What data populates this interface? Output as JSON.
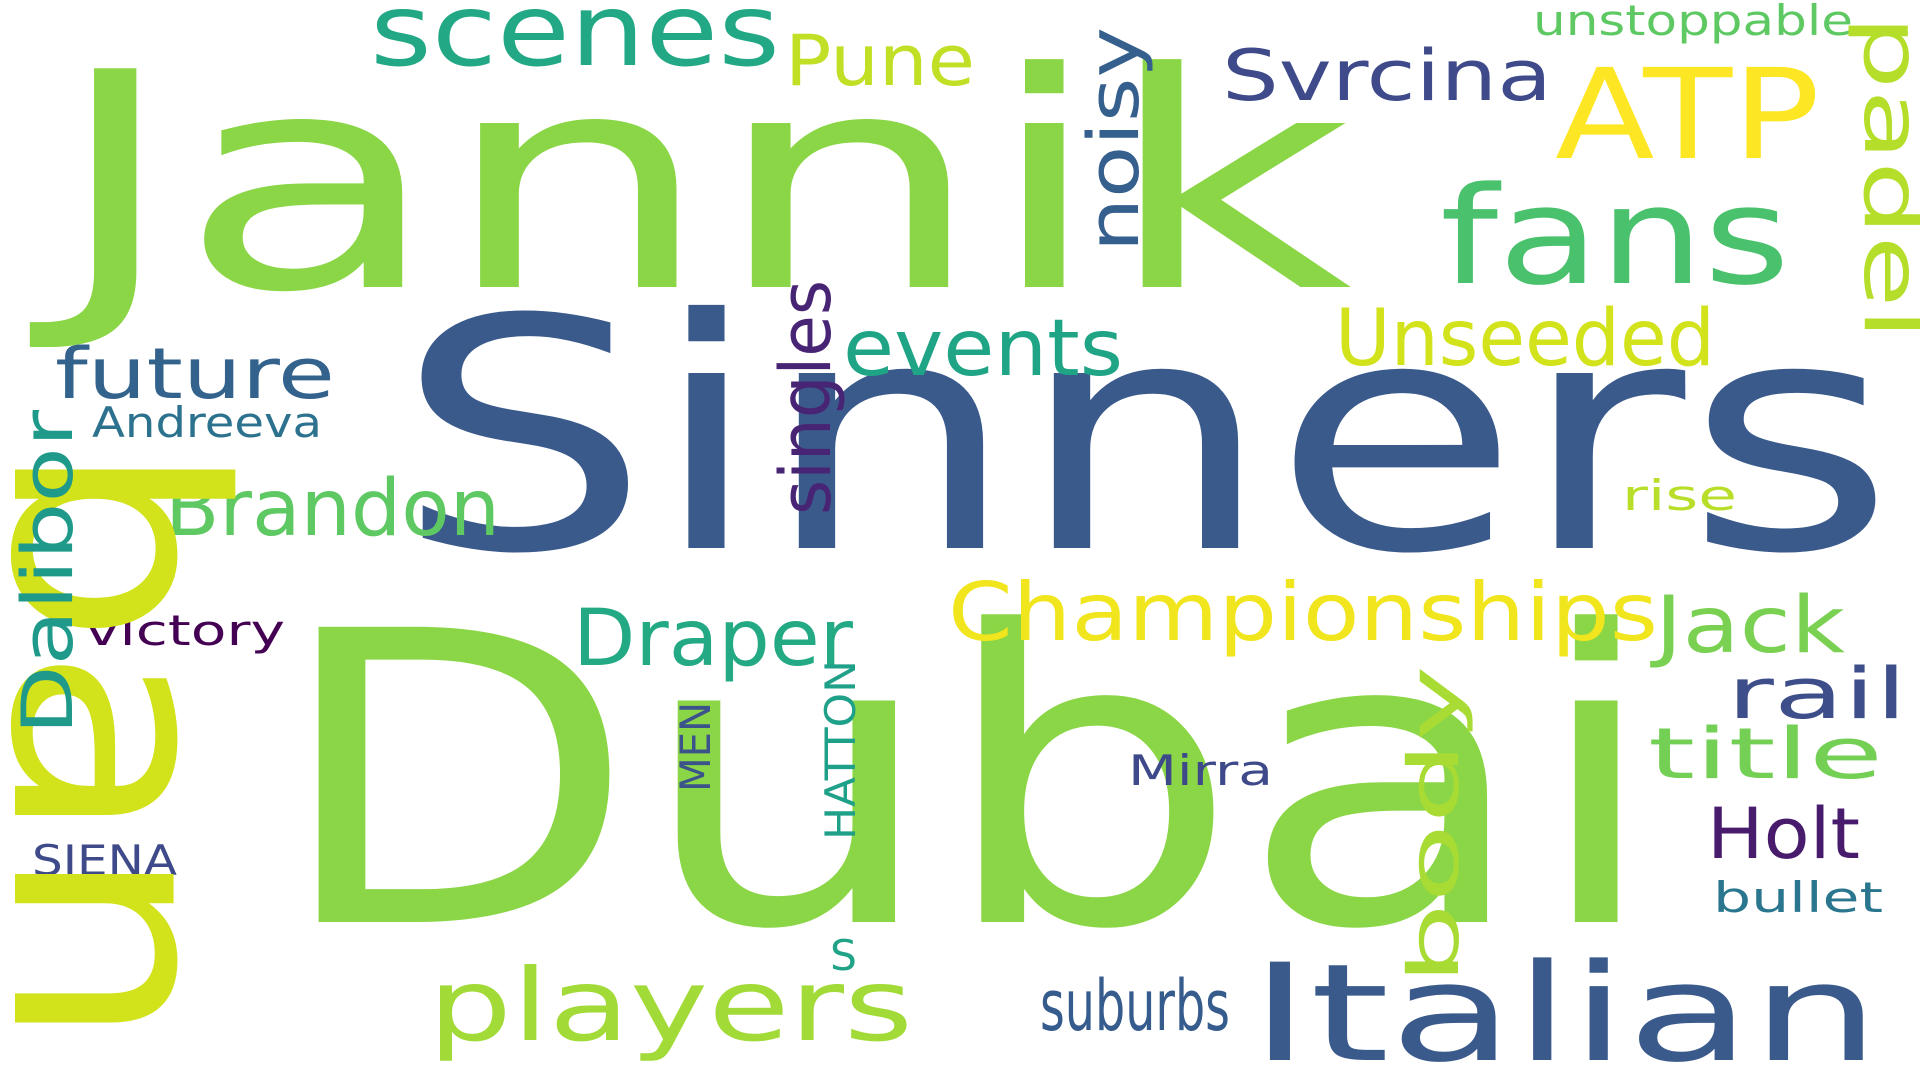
{
  "words": [
    {
      "text": "Dubai",
      "color": "#8bd646"
    },
    {
      "text": "Sinners",
      "color": "#3b5a8c"
    },
    {
      "text": "Jannik",
      "color": "#8bd646"
    },
    {
      "text": "ban",
      "color": "#d2e21b"
    },
    {
      "text": "Italian",
      "color": "#3b5a8c"
    },
    {
      "text": "fans",
      "color": "#4ac16d"
    },
    {
      "text": "players",
      "color": "#a2da37"
    },
    {
      "text": "scenes",
      "color": "#22a884"
    },
    {
      "text": "ATP",
      "color": "#fde725"
    },
    {
      "text": "Championships",
      "color": "#f1e51d"
    },
    {
      "text": "Unseeded",
      "color": "#d2e21b"
    },
    {
      "text": "events",
      "color": "#20a486"
    },
    {
      "text": "Brandon",
      "color": "#5ec962"
    },
    {
      "text": "Draper",
      "color": "#23a983"
    },
    {
      "text": "Jack",
      "color": "#7ad151"
    },
    {
      "text": "future",
      "color": "#33638d"
    },
    {
      "text": "Svrcina",
      "color": "#3e4a89"
    },
    {
      "text": "Pune",
      "color": "#c0df25"
    },
    {
      "text": "padel",
      "color": "#b5de2b"
    },
    {
      "text": "noisy",
      "color": "#355f8d"
    },
    {
      "text": "singles",
      "color": "#482475"
    },
    {
      "text": "Dalibor",
      "color": "#1f9a8a"
    },
    {
      "text": "suburbs",
      "color": "#365c8d"
    },
    {
      "text": "body",
      "color": "#a8db34"
    },
    {
      "text": "title",
      "color": "#74d055"
    },
    {
      "text": "rail",
      "color": "#3d4e8a"
    },
    {
      "text": "Holt",
      "color": "#481b6d"
    },
    {
      "text": "unstoppable",
      "color": "#5ec962"
    },
    {
      "text": "Andreeva",
      "color": "#2c728e"
    },
    {
      "text": "victory",
      "color": "#440154"
    },
    {
      "text": "Mirra",
      "color": "#3e4989"
    },
    {
      "text": "rise",
      "color": "#b8de29"
    },
    {
      "text": "bullet",
      "color": "#2a768e"
    },
    {
      "text": "SIENA",
      "color": "#3e4a89"
    },
    {
      "text": "MEN",
      "color": "#3b528b"
    },
    {
      "text": "HATTON",
      "color": "#1fa088"
    },
    {
      "text": "S",
      "color": "#20a386"
    }
  ]
}
